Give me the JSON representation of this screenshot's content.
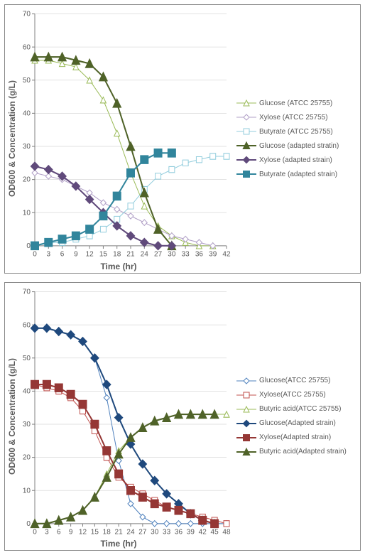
{
  "chart1": {
    "type": "line",
    "axis_color": "#808080",
    "grid_color": "#d9d9d9",
    "bg": "#ffffff",
    "xlabel": "Time (hr)",
    "ylabel": "OD600 & Concentration (g/L)",
    "xlabel_fontsize": 12,
    "ylabel_fontsize": 12,
    "tick_fontsize": 10,
    "xlim": [
      0,
      42
    ],
    "ylim": [
      0,
      70
    ],
    "xtick_step": 3,
    "ytick_step": 10,
    "marker_size": 5,
    "line_width": 2,
    "thin_line_width": 1,
    "series": [
      {
        "label": "Glucose (ATCC 25755)",
        "color": "#9bbb59",
        "thin": true,
        "marker": "triangle",
        "filled": false,
        "x": [
          0,
          3,
          6,
          9,
          12,
          15,
          18,
          21,
          24,
          27,
          30,
          33,
          36,
          39
        ],
        "y": [
          56,
          56,
          55,
          54,
          50,
          44,
          34,
          22,
          12,
          6,
          3,
          1,
          0,
          0
        ]
      },
      {
        "label": "Xylose (ATCC 25755)",
        "color": "#b1a0c7",
        "thin": true,
        "marker": "diamond",
        "filled": false,
        "x": [
          0,
          3,
          6,
          9,
          12,
          15,
          18,
          21,
          24,
          27,
          30,
          33,
          36,
          39
        ],
        "y": [
          22,
          21,
          20,
          18,
          16,
          13,
          11,
          9,
          7,
          5,
          3,
          2,
          1,
          0
        ]
      },
      {
        "label": "Butyrate (ATCC 25755)",
        "color": "#93cddd",
        "thin": true,
        "marker": "square",
        "filled": false,
        "x": [
          0,
          3,
          6,
          9,
          12,
          15,
          18,
          21,
          24,
          27,
          30,
          33,
          36,
          39,
          42
        ],
        "y": [
          0,
          1,
          1,
          2,
          3,
          5,
          8,
          12,
          17,
          21,
          23,
          25,
          26,
          27,
          27
        ]
      },
      {
        "label": "Glucose (adapted stratin)",
        "color": "#4f6228",
        "thin": false,
        "marker": "triangle",
        "filled": true,
        "x": [
          0,
          3,
          6,
          9,
          12,
          15,
          18,
          21,
          24,
          27,
          30
        ],
        "y": [
          57,
          57,
          57,
          56,
          55,
          51,
          43,
          30,
          16,
          5,
          0
        ]
      },
      {
        "label": "Xylose (adapted strain)",
        "color": "#604a7b",
        "thin": false,
        "marker": "diamond",
        "filled": true,
        "x": [
          0,
          3,
          6,
          9,
          12,
          15,
          18,
          21,
          24,
          27,
          30
        ],
        "y": [
          24,
          23,
          21,
          18,
          14,
          10,
          6,
          3,
          1,
          0,
          0
        ]
      },
      {
        "label": "Butyrate (adapted strain)",
        "color": "#31859c",
        "thin": false,
        "marker": "square",
        "filled": true,
        "x": [
          0,
          3,
          6,
          9,
          12,
          15,
          18,
          21,
          24,
          27,
          30
        ],
        "y": [
          0,
          1,
          2,
          3,
          5,
          9,
          15,
          22,
          26,
          28,
          28
        ]
      }
    ]
  },
  "chart2": {
    "type": "line",
    "axis_color": "#808080",
    "grid_color": "#d9d9d9",
    "bg": "#ffffff",
    "xlabel": "Time (hr)",
    "ylabel": "OD600 & Concentration (g/L)",
    "xlabel_fontsize": 12,
    "ylabel_fontsize": 12,
    "tick_fontsize": 10,
    "xlim": [
      0,
      48
    ],
    "ylim": [
      0,
      70
    ],
    "xtick_step": 3,
    "ytick_step": 10,
    "marker_size": 5,
    "line_width": 2,
    "thin_line_width": 1,
    "series": [
      {
        "label": "Glucose(ATCC 25755)",
        "color": "#4f81bd",
        "thin": true,
        "marker": "diamond",
        "filled": false,
        "x": [
          0,
          3,
          6,
          9,
          12,
          15,
          18,
          21,
          24,
          27,
          30,
          33,
          36,
          39,
          42,
          45,
          48
        ],
        "y": [
          59,
          59,
          58,
          57,
          55,
          50,
          38,
          19,
          6,
          2,
          0,
          0,
          0,
          0,
          0,
          0,
          0
        ]
      },
      {
        "label": "Xylose(ATCC 25755)",
        "color": "#c0504d",
        "thin": true,
        "marker": "square",
        "filled": false,
        "x": [
          0,
          3,
          6,
          9,
          12,
          15,
          18,
          21,
          24,
          27,
          30,
          33,
          36,
          39,
          42,
          45,
          48
        ],
        "y": [
          42,
          41,
          40,
          38,
          34,
          28,
          20,
          14,
          11,
          9,
          7,
          5,
          4,
          3,
          2,
          1,
          0
        ]
      },
      {
        "label": "Butyric acid(ATCC 25755)",
        "color": "#9bbb59",
        "thin": true,
        "marker": "triangle",
        "filled": false,
        "x": [
          0,
          3,
          6,
          9,
          12,
          15,
          18,
          21,
          24,
          27,
          30,
          33,
          36,
          39,
          42,
          45,
          48
        ],
        "y": [
          0,
          0,
          1,
          2,
          4,
          8,
          15,
          22,
          26,
          29,
          31,
          32,
          33,
          33,
          33,
          33,
          33
        ]
      },
      {
        "label": "Glucose(Adapted strain)",
        "color": "#1f497d",
        "thin": false,
        "marker": "diamond",
        "filled": true,
        "x": [
          0,
          3,
          6,
          9,
          12,
          15,
          18,
          21,
          24,
          27,
          30,
          33,
          36,
          39,
          42,
          45
        ],
        "y": [
          59,
          59,
          58,
          57,
          55,
          50,
          42,
          32,
          24,
          18,
          13,
          9,
          6,
          3,
          1,
          0
        ]
      },
      {
        "label": "Xylose(Adapted strain)",
        "color": "#953735",
        "thin": false,
        "marker": "square",
        "filled": true,
        "x": [
          0,
          3,
          6,
          9,
          12,
          15,
          18,
          21,
          24,
          27,
          30,
          33,
          36,
          39,
          42,
          45
        ],
        "y": [
          42,
          42,
          41,
          39,
          36,
          30,
          22,
          15,
          10,
          8,
          6,
          5,
          4,
          3,
          1,
          0
        ]
      },
      {
        "label": "Butyric acid(Adapted strain)",
        "color": "#4f6228",
        "thin": false,
        "marker": "triangle",
        "filled": true,
        "x": [
          0,
          3,
          6,
          9,
          12,
          15,
          18,
          21,
          24,
          27,
          30,
          33,
          36,
          39,
          42,
          45
        ],
        "y": [
          0,
          0,
          1,
          2,
          4,
          8,
          14,
          21,
          26,
          29,
          31,
          32,
          33,
          33,
          33,
          33
        ]
      }
    ]
  }
}
